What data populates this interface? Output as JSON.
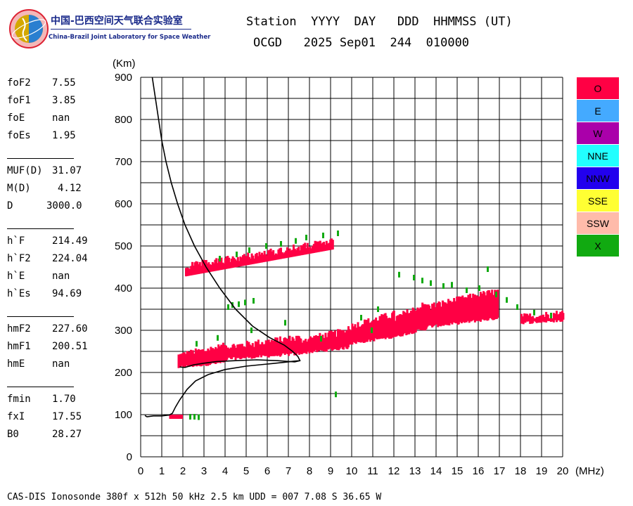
{
  "logo": {
    "title_cn": "中国-巴西空间天气联合实验室",
    "title_en": "China-Brazil Joint Laboratory for Space Weather"
  },
  "header": {
    "line1": "Station  YYYY  DAY   DDD  HHMMSS (UT)",
    "line2": "OCGD   2025 Sep01  244  010000"
  },
  "params": [
    {
      "group": [
        {
          "name": "foF2",
          "value": "7.55"
        },
        {
          "name": "foF1",
          "value": "3.85"
        },
        {
          "name": "foE",
          "value": "nan"
        },
        {
          "name": "foEs",
          "value": "1.95"
        }
      ]
    },
    {
      "group": [
        {
          "name": "MUF(D)",
          "value": "31.07"
        },
        {
          "name": "M(D)",
          "value": "4.12"
        },
        {
          "name": "D",
          "value": "3000.0"
        }
      ]
    },
    {
      "group": [
        {
          "name": "h`F",
          "value": "214.49"
        },
        {
          "name": "h`F2",
          "value": "224.04"
        },
        {
          "name": "h`E",
          "value": "nan"
        },
        {
          "name": "h`Es",
          "value": "94.69"
        }
      ]
    },
    {
      "group": [
        {
          "name": "hmF2",
          "value": "227.60"
        },
        {
          "name": "hmF1",
          "value": "200.51"
        },
        {
          "name": "hmE",
          "value": "nan"
        }
      ]
    },
    {
      "group": [
        {
          "name": "fmin",
          "value": "1.70"
        },
        {
          "name": "fxI",
          "value": "17.55"
        },
        {
          "name": "B0",
          "value": "28.27"
        }
      ]
    }
  ],
  "legend": [
    {
      "label": "O",
      "color": "#ff0044"
    },
    {
      "label": "E",
      "color": "#44aaff"
    },
    {
      "label": "W",
      "color": "#aa00aa"
    },
    {
      "label": "NNE",
      "color": "#22ffff"
    },
    {
      "label": "NNW",
      "color": "#2200ee"
    },
    {
      "label": "SSE",
      "color": "#ffff33"
    },
    {
      "label": "SSW",
      "color": "#ffbbaa"
    },
    {
      "label": "X",
      "color": "#11aa11"
    }
  ],
  "footer": "CAS-DIS Ionosonde 380f x 512h 50 kHz 2.5 km UDD = 007 7.08 S 36.65 W",
  "chart_data": {
    "type": "scatter",
    "xlabel": "(MHz)",
    "ylabel": "(Km)",
    "xlim": [
      0,
      20
    ],
    "ylim": [
      0,
      900
    ],
    "xticks": [
      0,
      1,
      2,
      3,
      4,
      5,
      6,
      7,
      8,
      9,
      10,
      11,
      12,
      13,
      14,
      15,
      16,
      17,
      18,
      19,
      20
    ],
    "yticks": [
      0,
      100,
      200,
      300,
      400,
      500,
      600,
      700,
      800,
      900
    ],
    "grid": true,
    "o_color": "#ff0044",
    "x_color": "#11aa11",
    "o_trace_bands": [
      {
        "x": [
          1.75,
          4.0
        ],
        "y": [
          212,
          262
        ]
      },
      {
        "x": [
          4.0,
          7.5
        ],
        "y": [
          232,
          282
        ]
      },
      {
        "x": [
          7.5,
          9.8
        ],
        "y": [
          246,
          298
        ]
      },
      {
        "x": [
          9.8,
          12.0
        ],
        "y": [
          268,
          338
        ]
      },
      {
        "x": [
          12.0,
          13.5
        ],
        "y": [
          285,
          362
        ]
      },
      {
        "x": [
          13.5,
          16.9
        ],
        "y": [
          308,
          392
        ]
      },
      {
        "x": [
          18.0,
          20.0
        ],
        "y": [
          318,
          340
        ]
      }
    ],
    "o_trace_f2_echo": {
      "x": [
        2.1,
        9.1
      ],
      "y_start": [
        428,
        460
      ],
      "y_end": [
        492,
        520
      ]
    },
    "o_trace_es": {
      "x": [
        1.35,
        2.0
      ],
      "y": [
        90,
        100
      ]
    },
    "x_trace_points": [
      [
        2.3,
        95
      ],
      [
        2.5,
        95
      ],
      [
        2.7,
        94
      ],
      [
        3.7,
        470
      ],
      [
        4.5,
        480
      ],
      [
        5.1,
        490
      ],
      [
        5.9,
        500
      ],
      [
        6.6,
        505
      ],
      [
        7.3,
        512
      ],
      [
        7.8,
        520
      ],
      [
        8.6,
        525
      ],
      [
        9.3,
        530
      ],
      [
        4.1,
        355
      ],
      [
        4.3,
        360
      ],
      [
        4.6,
        362
      ],
      [
        4.9,
        366
      ],
      [
        5.3,
        370
      ],
      [
        2.6,
        268
      ],
      [
        3.6,
        282
      ],
      [
        5.2,
        300
      ],
      [
        6.8,
        318
      ],
      [
        9.2,
        148
      ],
      [
        10.4,
        330
      ],
      [
        11.2,
        350
      ],
      [
        12.2,
        432
      ],
      [
        12.9,
        425
      ],
      [
        13.3,
        418
      ],
      [
        13.7,
        412
      ],
      [
        14.3,
        405
      ],
      [
        14.7,
        408
      ],
      [
        15.4,
        395
      ],
      [
        16.0,
        400
      ],
      [
        16.4,
        445
      ],
      [
        16.8,
        385
      ],
      [
        17.3,
        372
      ],
      [
        17.8,
        355
      ],
      [
        18.6,
        342
      ],
      [
        19.4,
        335
      ],
      [
        10.9,
        300
      ],
      [
        8.5,
        280
      ]
    ],
    "virtual_height_profile": [
      [
        0.55,
        900
      ],
      [
        0.7,
        850
      ],
      [
        0.85,
        800
      ],
      [
        1.0,
        750
      ],
      [
        1.2,
        700
      ],
      [
        1.45,
        650
      ],
      [
        1.75,
        600
      ],
      [
        2.1,
        550
      ],
      [
        2.55,
        500
      ],
      [
        3.1,
        450
      ],
      [
        3.75,
        400
      ],
      [
        4.5,
        350
      ],
      [
        5.3,
        310
      ],
      [
        6.1,
        283
      ],
      [
        6.8,
        265
      ],
      [
        7.2,
        250
      ],
      [
        7.45,
        238
      ],
      [
        7.55,
        228
      ],
      [
        7.3,
        225
      ],
      [
        6.5,
        228
      ],
      [
        5.5,
        230
      ],
      [
        4.5,
        228
      ],
      [
        3.6,
        226
      ],
      [
        3.0,
        222
      ],
      [
        2.5,
        218
      ],
      [
        2.1,
        212
      ],
      [
        1.85,
        213
      ]
    ],
    "true_height_profile": [
      [
        0.2,
        98
      ],
      [
        0.3,
        95
      ],
      [
        0.6,
        97
      ],
      [
        1.0,
        97
      ],
      [
        1.35,
        99
      ],
      [
        1.5,
        103
      ],
      [
        1.65,
        118
      ],
      [
        1.85,
        135
      ],
      [
        2.2,
        160
      ],
      [
        2.6,
        180
      ],
      [
        3.2,
        195
      ],
      [
        4.0,
        207
      ],
      [
        5.0,
        215
      ],
      [
        6.0,
        220
      ],
      [
        6.8,
        224
      ],
      [
        7.3,
        227
      ],
      [
        7.55,
        228
      ]
    ]
  }
}
